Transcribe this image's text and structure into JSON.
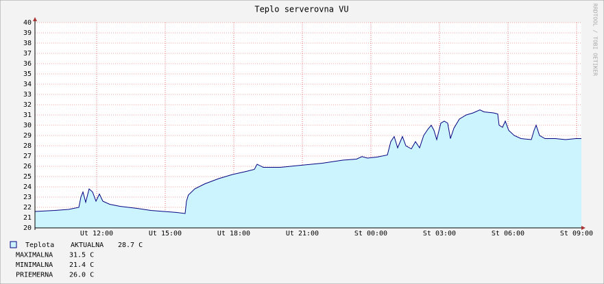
{
  "chart_data": {
    "type": "area",
    "title": "Teplo serverovna VU",
    "watermark": "RRDTOOL / TOBI OETIKER",
    "x": [
      9.3,
      10.17,
      10.77,
      11.22,
      11.31,
      11.4,
      11.52,
      11.67,
      11.82,
      11.97,
      12.12,
      12.27,
      12.57,
      13.02,
      13.77,
      14.37,
      15.51,
      15.87,
      15.93,
      16.01,
      16.29,
      16.74,
      17.34,
      17.94,
      18.54,
      18.9,
      19.02,
      19.29,
      20.04,
      20.94,
      21.87,
      22.77,
      23.37,
      23.61,
      23.85,
      24.27,
      24.72,
      24.87,
      25.02,
      25.17,
      25.38,
      25.53,
      25.77,
      25.95,
      26.13,
      26.31,
      26.49,
      26.64,
      26.76,
      26.88,
      27.06,
      27.21,
      27.36,
      27.48,
      27.63,
      27.87,
      28.17,
      28.47,
      28.77,
      28.95,
      29.37,
      29.55,
      29.61,
      29.76,
      29.88,
      30.03,
      30.27,
      30.57,
      31.02,
      31.14,
      31.23,
      31.38,
      31.62,
      32.07,
      32.52,
      32.97,
      33.21
    ],
    "series": [
      {
        "name": "Teplota",
        "color": "#ccf4ff",
        "line_color": "#000080",
        "values": [
          21.6,
          21.7,
          21.8,
          22.0,
          23.0,
          23.5,
          22.5,
          23.8,
          23.5,
          22.6,
          23.3,
          22.6,
          22.3,
          22.1,
          21.9,
          21.7,
          21.5,
          21.4,
          22.6,
          23.2,
          23.8,
          24.3,
          24.8,
          25.2,
          25.5,
          25.7,
          26.2,
          25.9,
          25.9,
          26.1,
          26.3,
          26.6,
          26.7,
          26.95,
          26.8,
          26.9,
          27.1,
          28.4,
          28.9,
          27.8,
          28.9,
          28.0,
          27.7,
          28.4,
          27.8,
          29.0,
          29.6,
          30.0,
          29.5,
          28.6,
          30.2,
          30.4,
          30.2,
          28.7,
          29.7,
          30.6,
          31.0,
          31.2,
          31.5,
          31.3,
          31.2,
          31.1,
          30.0,
          29.8,
          30.4,
          29.5,
          29.0,
          28.7,
          28.6,
          29.5,
          30.0,
          29.0,
          28.7,
          28.7,
          28.6,
          28.7,
          28.7
        ]
      }
    ],
    "xlim": [
      9.3,
      33.21
    ],
    "ylim": [
      20,
      40
    ],
    "yticks": [
      20,
      21,
      22,
      23,
      24,
      25,
      26,
      27,
      28,
      29,
      30,
      31,
      32,
      33,
      34,
      35,
      36,
      37,
      38,
      39,
      40
    ],
    "xticks": [
      {
        "value": 12,
        "label": "Ut 12:00"
      },
      {
        "value": 15,
        "label": "Ut 15:00"
      },
      {
        "value": 18,
        "label": "Ut 18:00"
      },
      {
        "value": 21,
        "label": "Ut 21:00"
      },
      {
        "value": 24,
        "label": "St 00:00"
      },
      {
        "value": 27,
        "label": "St 03:00"
      },
      {
        "value": 30,
        "label": "St 06:00"
      },
      {
        "value": 33,
        "label": "St 09:00"
      }
    ],
    "grid": true,
    "stats": [
      {
        "label": "AKTUALNA",
        "value": "28.7 C"
      },
      {
        "label": "MAXIMALNA",
        "value": "31.5 C"
      },
      {
        "label": "MINIMALNA",
        "value": "21.4 C"
      },
      {
        "label": "PRIEMERNA",
        "value": "26.0 C"
      }
    ]
  }
}
